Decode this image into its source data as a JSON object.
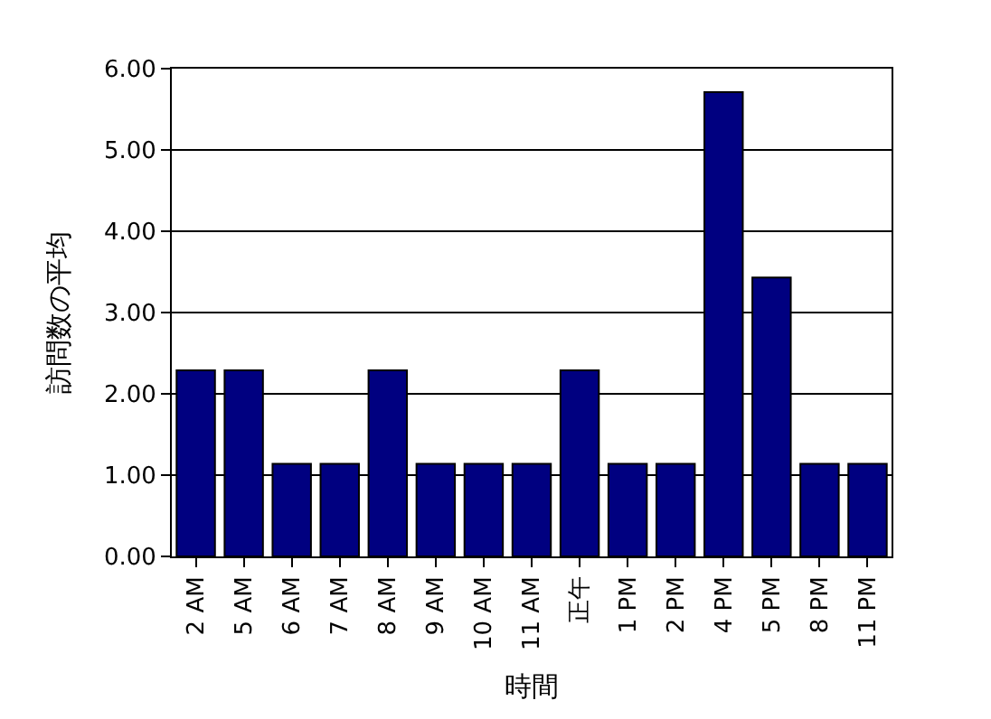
{
  "chart_data": {
    "type": "bar",
    "xlabel": "時間",
    "ylabel": "訪問数の平均",
    "categories": [
      "2 AM",
      "5 AM",
      "6 AM",
      "7 AM",
      "8 AM",
      "9 AM",
      "10 AM",
      "11 AM",
      "正午",
      "1 PM",
      "2 PM",
      "4 PM",
      "5 PM",
      "8 PM",
      "11 PM"
    ],
    "values": [
      2.29,
      2.29,
      1.14,
      1.14,
      2.29,
      1.14,
      1.14,
      1.14,
      2.29,
      1.14,
      1.14,
      5.71,
      3.43,
      1.14,
      1.14
    ],
    "color": "#000080",
    "ylim": [
      0,
      6
    ],
    "yticks": [
      {
        "value": 0,
        "label": "0.00"
      },
      {
        "value": 1,
        "label": "1.00"
      },
      {
        "value": 2,
        "label": "2.00"
      },
      {
        "value": 3,
        "label": "3.00"
      },
      {
        "value": 4,
        "label": "4.00"
      },
      {
        "value": 5,
        "label": "5.00"
      },
      {
        "value": 6,
        "label": "6.00"
      }
    ],
    "grid": "y",
    "legend": false
  }
}
